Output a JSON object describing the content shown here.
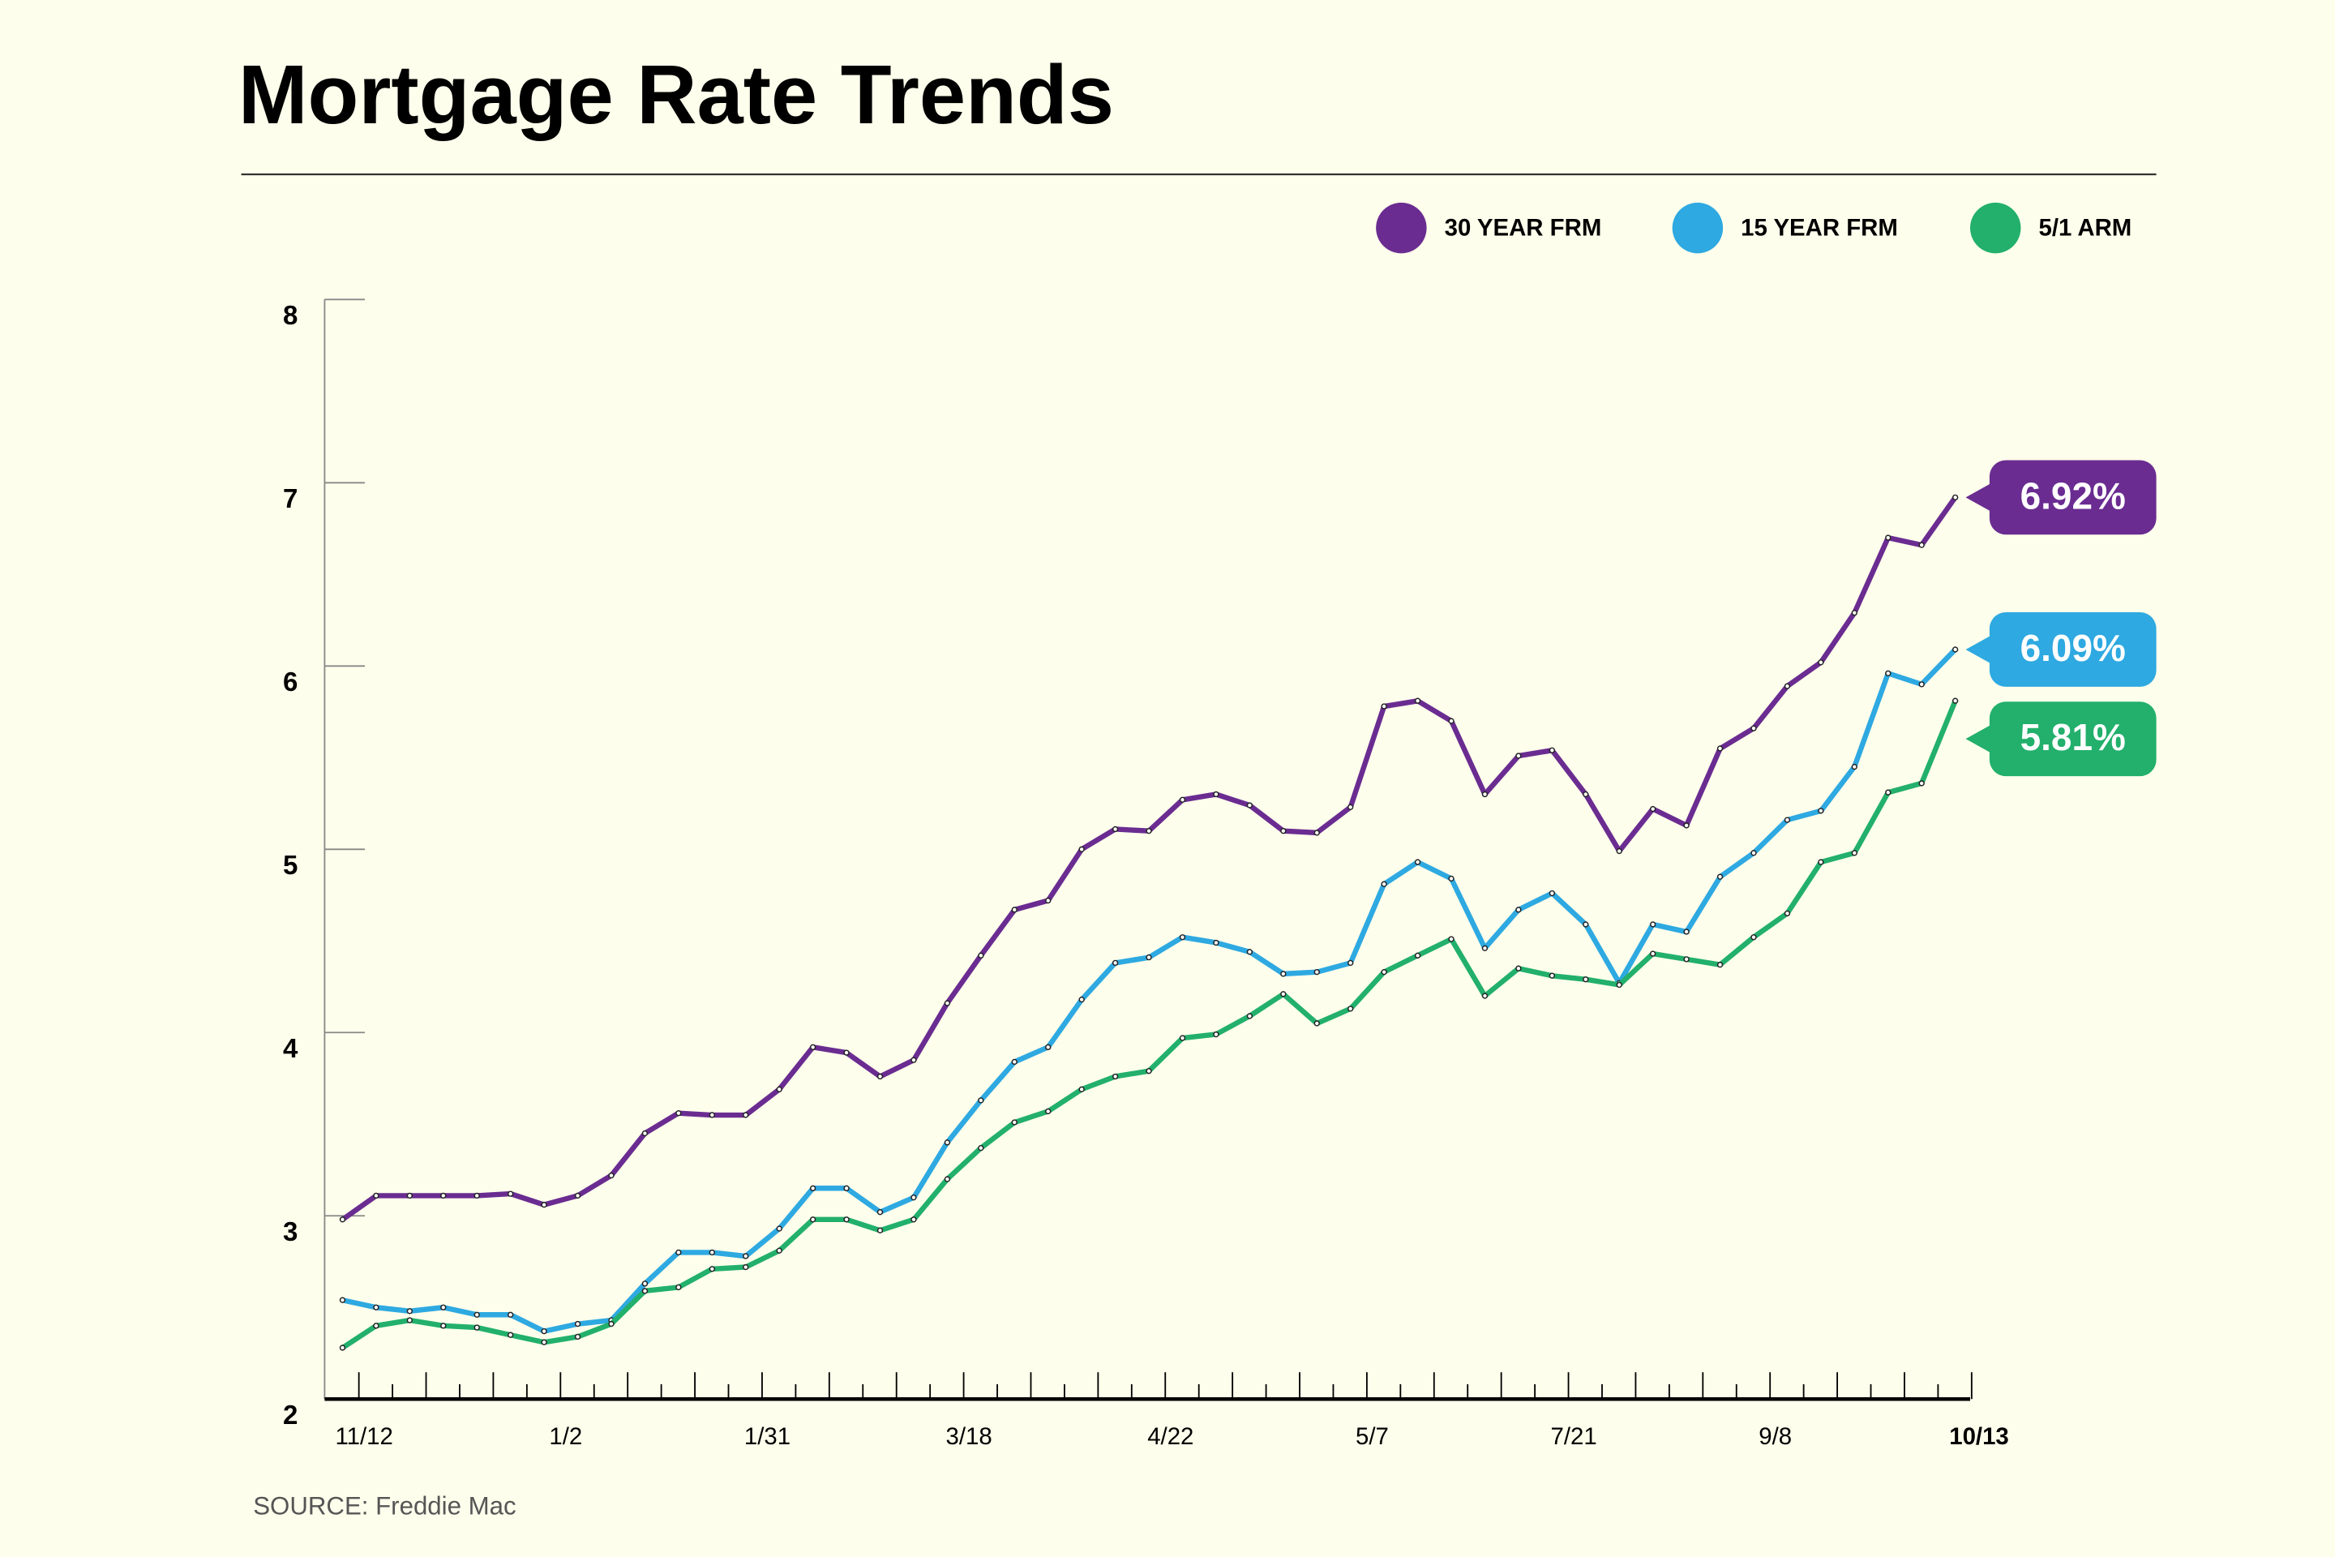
{
  "chart_data": {
    "type": "line",
    "title": "Mortgage Rate Trends",
    "source": "SOURCE: Freddie Mac",
    "categories": [
      null,
      "11/12",
      null,
      null,
      null,
      null,
      null,
      "1/2",
      null,
      null,
      null,
      null,
      null,
      "1/31",
      null,
      null,
      null,
      null,
      null,
      "3/18",
      null,
      null,
      null,
      null,
      null,
      "4/22",
      null,
      null,
      null,
      null,
      null,
      "5/7",
      null,
      null,
      null,
      null,
      null,
      "7/21",
      null,
      null,
      null,
      null,
      null,
      "9/8",
      null,
      null,
      null,
      null,
      "10/13"
    ],
    "ylim": [
      2,
      8
    ],
    "yticks": [
      2,
      3,
      4,
      5,
      6,
      7,
      8
    ],
    "legend": "top-right",
    "series": [
      {
        "name": "30 YEAR FRM",
        "color": "#6a2c91",
        "values": [
          2.98,
          3.11,
          3.11,
          3.11,
          3.11,
          3.12,
          3.06,
          3.11,
          3.22,
          3.45,
          3.56,
          3.55,
          3.55,
          3.69,
          3.92,
          3.89,
          3.76,
          3.85,
          4.16,
          4.42,
          4.67,
          4.72,
          5.0,
          5.11,
          5.1,
          5.27,
          5.3,
          5.24,
          5.1,
          5.09,
          5.23,
          5.78,
          5.81,
          5.7,
          5.3,
          5.51,
          5.54,
          5.3,
          4.99,
          5.22,
          5.13,
          5.55,
          5.66,
          5.89,
          6.02,
          6.29,
          6.7,
          6.66,
          6.92
        ],
        "value_labels": [
          null,
          null,
          null,
          null,
          null,
          null,
          null,
          null,
          null,
          null,
          null,
          null,
          null,
          null,
          null,
          null,
          null,
          null,
          null,
          null,
          null,
          null,
          null,
          null,
          null,
          null,
          null,
          null,
          null,
          null,
          null,
          null,
          null,
          null,
          null,
          null,
          null,
          null,
          null,
          null,
          null,
          null,
          null,
          null,
          null,
          null,
          null,
          null,
          "6.92%"
        ]
      },
      {
        "name": "15 YEAR FRM",
        "color": "#2ea9e1",
        "values": [
          2.54,
          2.5,
          2.48,
          2.5,
          2.46,
          2.46,
          2.37,
          2.41,
          2.43,
          2.63,
          2.8,
          2.8,
          2.78,
          2.93,
          3.15,
          3.15,
          3.02,
          3.1,
          3.4,
          3.63,
          3.84,
          3.92,
          4.18,
          4.38,
          4.41,
          4.52,
          4.49,
          4.44,
          4.32,
          4.33,
          4.38,
          4.81,
          4.93,
          4.84,
          4.46,
          4.67,
          4.76,
          4.59,
          4.27,
          4.59,
          4.55,
          4.85,
          4.98,
          5.16,
          5.21,
          5.45,
          5.96,
          5.9,
          6.09
        ],
        "value_labels": [
          null,
          null,
          null,
          null,
          null,
          null,
          null,
          null,
          null,
          null,
          null,
          null,
          null,
          null,
          null,
          null,
          null,
          null,
          null,
          null,
          null,
          null,
          null,
          null,
          null,
          null,
          null,
          null,
          null,
          null,
          null,
          null,
          null,
          null,
          null,
          null,
          null,
          null,
          null,
          null,
          null,
          null,
          null,
          null,
          null,
          null,
          null,
          null,
          "6.09%"
        ]
      },
      {
        "name": "5/1 ARM",
        "color": "#22b06c",
        "values": [
          2.28,
          2.4,
          2.43,
          2.4,
          2.39,
          2.35,
          2.31,
          2.34,
          2.41,
          2.59,
          2.61,
          2.71,
          2.72,
          2.81,
          2.98,
          2.98,
          2.92,
          2.98,
          3.2,
          3.37,
          3.51,
          3.57,
          3.69,
          3.76,
          3.79,
          3.97,
          3.99,
          4.09,
          4.21,
          4.05,
          4.13,
          4.33,
          4.42,
          4.51,
          4.2,
          4.35,
          4.31,
          4.29,
          4.26,
          4.43,
          4.4,
          4.37,
          4.52,
          4.65,
          4.93,
          4.98,
          5.31,
          5.36,
          5.81
        ],
        "value_labels": [
          null,
          null,
          null,
          null,
          null,
          null,
          null,
          null,
          null,
          null,
          null,
          null,
          null,
          null,
          null,
          null,
          null,
          null,
          null,
          null,
          null,
          null,
          null,
          null,
          null,
          null,
          null,
          null,
          null,
          null,
          null,
          null,
          null,
          null,
          null,
          null,
          null,
          null,
          null,
          null,
          null,
          null,
          null,
          null,
          null,
          null,
          null,
          null,
          "5.81%"
        ]
      }
    ]
  }
}
